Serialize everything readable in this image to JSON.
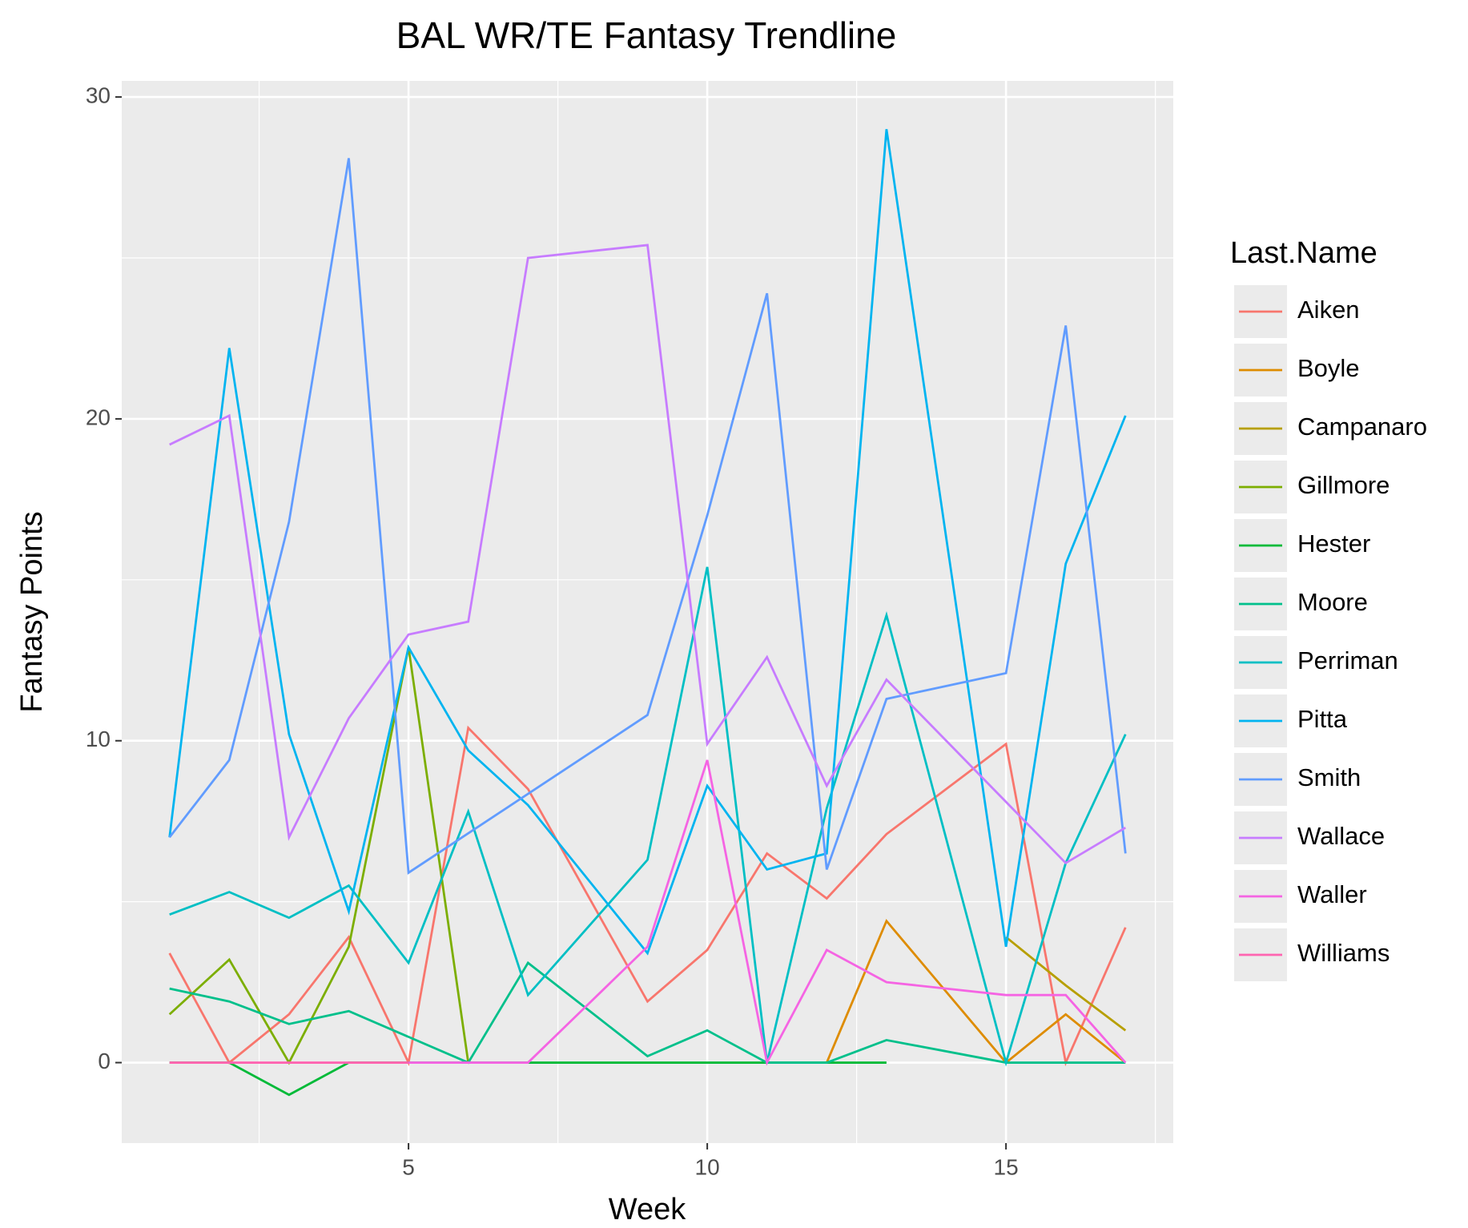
{
  "chart_data": {
    "type": "line",
    "title": "BAL WR/TE Fantasy Trendline",
    "x_label": "Week",
    "y_label": "Fantasy Points",
    "legend_title": "Last.Name",
    "legend": "right",
    "grid": true,
    "xlim": [
      0.2,
      17.8
    ],
    "xticks": [
      5,
      10,
      15
    ],
    "xminor": [
      2.5,
      7.5,
      12.5,
      17.5
    ],
    "ylim": [
      -2.5,
      30.5
    ],
    "yticks": [
      0,
      10,
      20,
      30
    ],
    "yminor": [
      5,
      15,
      25
    ],
    "series": [
      {
        "name": "Aiken",
        "color": "#F8766D",
        "x": [
          1,
          2,
          3,
          4,
          5,
          6,
          7,
          9,
          10,
          11,
          12,
          13,
          15,
          16,
          17
        ],
        "values": [
          3.4,
          0,
          1.5,
          3.9,
          0,
          10.4,
          8.5,
          1.9,
          3.5,
          6.5,
          5.1,
          7.1,
          9.9,
          0,
          4.2
        ]
      },
      {
        "name": "Boyle",
        "color": "#DE8C00",
        "x": [
          12,
          13,
          15,
          16,
          17
        ],
        "values": [
          0,
          4.4,
          0,
          1.5,
          0
        ]
      },
      {
        "name": "Campanaro",
        "color": "#B79F00",
        "x": [
          15,
          16,
          17
        ],
        "values": [
          3.9,
          2.4,
          1.0
        ]
      },
      {
        "name": "Gillmore",
        "color": "#7CAE00",
        "x": [
          1,
          2,
          3,
          4,
          5,
          6
        ],
        "values": [
          1.5,
          3.2,
          0,
          3.6,
          12.9,
          0
        ]
      },
      {
        "name": "Hester",
        "color": "#00BA38",
        "x": [
          1,
          2,
          3,
          4,
          5,
          6,
          7,
          8,
          9,
          10,
          11,
          12,
          13
        ],
        "values": [
          0,
          0,
          -1,
          0,
          0,
          0,
          0,
          0,
          0,
          0,
          0,
          0,
          0
        ]
      },
      {
        "name": "Moore",
        "color": "#00C08B",
        "x": [
          1,
          2,
          3,
          4,
          6,
          7,
          9,
          10,
          11,
          12,
          13,
          15,
          16,
          17
        ],
        "values": [
          2.3,
          1.9,
          1.2,
          1.6,
          0,
          3.1,
          0.2,
          1.0,
          0,
          0,
          0.7,
          0,
          0,
          0
        ]
      },
      {
        "name": "Perriman",
        "color": "#00BFC4",
        "x": [
          1,
          2,
          3,
          4,
          5,
          6,
          7,
          9,
          10,
          11,
          12,
          13,
          15,
          16,
          17
        ],
        "values": [
          4.6,
          5.3,
          4.5,
          5.5,
          3.1,
          7.8,
          2.1,
          6.3,
          15.4,
          0,
          7.9,
          13.9,
          0,
          6.2,
          10.2
        ]
      },
      {
        "name": "Pitta",
        "color": "#00B4F0",
        "x": [
          1,
          2,
          3,
          4,
          5,
          6,
          7,
          9,
          10,
          11,
          12,
          13,
          15,
          16,
          17
        ],
        "values": [
          7.0,
          22.2,
          10.2,
          4.7,
          12.9,
          9.7,
          8.0,
          3.4,
          8.6,
          6.0,
          6.5,
          29.0,
          3.6,
          15.5,
          20.1
        ]
      },
      {
        "name": "Smith",
        "color": "#619CFF",
        "x": [
          1,
          2,
          3,
          4,
          5,
          9,
          10,
          11,
          12,
          13,
          15,
          16,
          17
        ],
        "values": [
          7.0,
          9.4,
          16.8,
          28.1,
          5.9,
          10.8,
          17.0,
          23.9,
          6.0,
          11.3,
          12.1,
          22.9,
          6.5
        ]
      },
      {
        "name": "Wallace",
        "color": "#C77CFF",
        "x": [
          1,
          2,
          3,
          4,
          5,
          6,
          7,
          9,
          10,
          11,
          12,
          13,
          16,
          17
        ],
        "values": [
          19.2,
          20.1,
          7.0,
          10.7,
          13.3,
          13.7,
          25.0,
          25.4,
          9.9,
          12.6,
          8.6,
          11.9,
          6.2,
          7.3
        ]
      },
      {
        "name": "Waller",
        "color": "#F564E3",
        "x": [
          5,
          6,
          7,
          9,
          10,
          11,
          12,
          13,
          15,
          16,
          17
        ],
        "values": [
          0,
          0,
          0,
          3.6,
          9.4,
          0,
          3.5,
          2.5,
          2.1,
          2.1,
          0
        ]
      },
      {
        "name": "Williams",
        "color": "#FF64B0",
        "x": [
          1,
          2,
          3,
          4,
          5
        ],
        "values": [
          0,
          0,
          0,
          0,
          0
        ]
      }
    ]
  }
}
